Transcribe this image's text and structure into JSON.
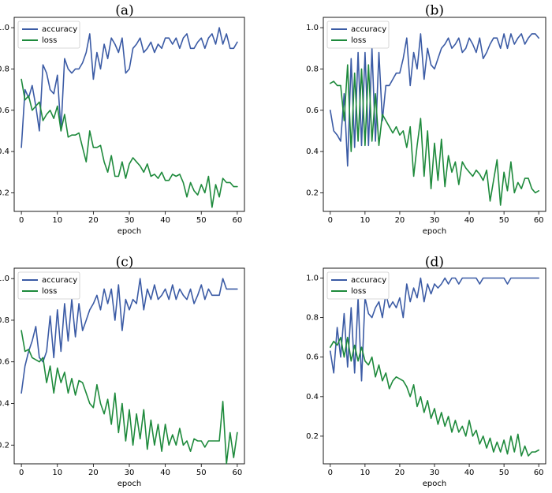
{
  "colors": {
    "accuracy": "#3b5ba5",
    "loss": "#1e8a3c"
  },
  "chart_data": [
    {
      "type": "line",
      "panel": "(a)",
      "title": "",
      "xlabel": "epoch",
      "ylabel": "",
      "xlim": [
        -2,
        62
      ],
      "ylim": [
        0.11,
        1.05
      ],
      "xticks": [
        "0",
        "10",
        "20",
        "30",
        "40",
        "50",
        "60"
      ],
      "yticks": [
        "0.2",
        "0.4",
        "0.6",
        "0.8",
        "1.0"
      ],
      "legend": "upper-left",
      "series": [
        {
          "name": "accuracy",
          "x_start": 0,
          "values": [
            0.42,
            0.7,
            0.66,
            0.72,
            0.62,
            0.5,
            0.82,
            0.78,
            0.7,
            0.68,
            0.77,
            0.5,
            0.85,
            0.8,
            0.78,
            0.8,
            0.8,
            0.83,
            0.88,
            0.97,
            0.75,
            0.88,
            0.8,
            0.92,
            0.85,
            0.95,
            0.92,
            0.88,
            0.95,
            0.78,
            0.8,
            0.9,
            0.92,
            0.95,
            0.88,
            0.9,
            0.93,
            0.88,
            0.92,
            0.9,
            0.95,
            0.95,
            0.92,
            0.95,
            0.9,
            0.95,
            0.97,
            0.9,
            0.9,
            0.93,
            0.95,
            0.9,
            0.95,
            0.97,
            0.92,
            1.0,
            0.92,
            0.97,
            0.9,
            0.9,
            0.93
          ]
        },
        {
          "name": "loss",
          "x_start": 0,
          "values": [
            0.75,
            0.65,
            0.67,
            0.6,
            0.62,
            0.64,
            0.55,
            0.58,
            0.6,
            0.56,
            0.62,
            0.5,
            0.58,
            0.47,
            0.48,
            0.48,
            0.49,
            0.42,
            0.35,
            0.5,
            0.42,
            0.42,
            0.43,
            0.35,
            0.3,
            0.38,
            0.28,
            0.28,
            0.35,
            0.27,
            0.34,
            0.37,
            0.35,
            0.33,
            0.3,
            0.34,
            0.28,
            0.29,
            0.27,
            0.3,
            0.26,
            0.26,
            0.29,
            0.28,
            0.29,
            0.25,
            0.18,
            0.25,
            0.21,
            0.19,
            0.24,
            0.2,
            0.28,
            0.13,
            0.24,
            0.18,
            0.27,
            0.25,
            0.25,
            0.23,
            0.23
          ]
        }
      ]
    },
    {
      "type": "line",
      "panel": "(b)",
      "title": "",
      "xlabel": "epoch",
      "ylabel": "",
      "xlim": [
        -2,
        62
      ],
      "ylim": [
        0.11,
        1.05
      ],
      "xticks": [
        "0",
        "10",
        "20",
        "30",
        "40",
        "50",
        "60"
      ],
      "yticks": [
        "0.2",
        "0.4",
        "0.6",
        "0.8",
        "1.0"
      ],
      "legend": "upper-left",
      "series": [
        {
          "name": "accuracy",
          "x_start": 0,
          "values": [
            0.6,
            0.5,
            0.48,
            0.45,
            0.68,
            0.33,
            0.85,
            0.42,
            0.88,
            0.43,
            0.88,
            0.43,
            0.9,
            0.45,
            0.88,
            0.55,
            0.72,
            0.72,
            0.75,
            0.78,
            0.78,
            0.85,
            0.95,
            0.72,
            0.88,
            0.8,
            0.97,
            0.75,
            0.9,
            0.82,
            0.8,
            0.85,
            0.9,
            0.92,
            0.95,
            0.9,
            0.92,
            0.95,
            0.88,
            0.9,
            0.95,
            0.92,
            0.88,
            0.95,
            0.85,
            0.88,
            0.92,
            0.95,
            0.95,
            0.9,
            0.97,
            0.9,
            0.97,
            0.92,
            0.95,
            0.97,
            0.92,
            0.95,
            0.97,
            0.97,
            0.95
          ]
        },
        {
          "name": "loss",
          "x_start": 0,
          "values": [
            0.73,
            0.74,
            0.72,
            0.72,
            0.55,
            0.82,
            0.4,
            0.78,
            0.45,
            0.8,
            0.43,
            0.82,
            0.45,
            0.68,
            0.43,
            0.58,
            0.55,
            0.52,
            0.49,
            0.52,
            0.48,
            0.5,
            0.42,
            0.52,
            0.28,
            0.43,
            0.56,
            0.28,
            0.5,
            0.22,
            0.44,
            0.26,
            0.46,
            0.23,
            0.38,
            0.3,
            0.35,
            0.24,
            0.35,
            0.32,
            0.3,
            0.28,
            0.31,
            0.29,
            0.26,
            0.31,
            0.16,
            0.26,
            0.36,
            0.14,
            0.3,
            0.21,
            0.35,
            0.2,
            0.25,
            0.22,
            0.27,
            0.27,
            0.22,
            0.2,
            0.21
          ]
        }
      ]
    },
    {
      "type": "line",
      "panel": "(c)",
      "title": "",
      "xlabel": "epoch",
      "ylabel": "",
      "xlim": [
        -2,
        62
      ],
      "ylim": [
        0.11,
        1.05
      ],
      "xticks": [
        "0",
        "10",
        "20",
        "30",
        "40",
        "50",
        "60"
      ],
      "yticks": [
        "0.2",
        "0.4",
        "0.6",
        "0.8",
        "1.0"
      ],
      "legend": "upper-left",
      "series": [
        {
          "name": "accuracy",
          "x_start": 0,
          "values": [
            0.45,
            0.58,
            0.65,
            0.7,
            0.77,
            0.62,
            0.6,
            0.65,
            0.82,
            0.62,
            0.85,
            0.65,
            0.88,
            0.7,
            0.9,
            0.72,
            0.88,
            0.75,
            0.8,
            0.85,
            0.88,
            0.92,
            0.85,
            0.95,
            0.88,
            0.95,
            0.8,
            0.97,
            0.75,
            0.9,
            0.85,
            0.9,
            0.88,
            1.0,
            0.85,
            0.95,
            0.9,
            0.97,
            0.9,
            0.92,
            0.95,
            0.9,
            0.97,
            0.9,
            0.95,
            0.92,
            0.9,
            0.95,
            0.88,
            0.92,
            0.97,
            0.9,
            0.95,
            0.92,
            0.92,
            0.92,
            1.0,
            0.95,
            0.95,
            0.95,
            0.95
          ]
        },
        {
          "name": "loss",
          "x_start": 0,
          "values": [
            0.75,
            0.65,
            0.66,
            0.62,
            0.61,
            0.6,
            0.62,
            0.5,
            0.58,
            0.45,
            0.57,
            0.5,
            0.55,
            0.45,
            0.52,
            0.44,
            0.51,
            0.5,
            0.45,
            0.4,
            0.38,
            0.49,
            0.4,
            0.35,
            0.42,
            0.3,
            0.45,
            0.26,
            0.4,
            0.22,
            0.37,
            0.2,
            0.35,
            0.23,
            0.37,
            0.18,
            0.32,
            0.2,
            0.3,
            0.17,
            0.3,
            0.2,
            0.25,
            0.2,
            0.28,
            0.2,
            0.22,
            0.17,
            0.23,
            0.22,
            0.22,
            0.19,
            0.22,
            0.22,
            0.22,
            0.22,
            0.41,
            0.11,
            0.26,
            0.14,
            0.26
          ]
        }
      ]
    },
    {
      "type": "line",
      "panel": "(d)",
      "title": "",
      "xlabel": "epoch",
      "ylabel": "",
      "xlim": [
        -2,
        62
      ],
      "ylim": [
        0.06,
        1.05
      ],
      "xticks": [
        "0",
        "10",
        "20",
        "30",
        "40",
        "50",
        "60"
      ],
      "yticks": [
        "0.2",
        "0.4",
        "0.6",
        "0.8",
        "1.0"
      ],
      "legend": "upper-left",
      "series": [
        {
          "name": "accuracy",
          "x_start": 0,
          "values": [
            0.63,
            0.52,
            0.75,
            0.6,
            0.82,
            0.55,
            0.85,
            0.52,
            0.9,
            0.48,
            0.9,
            0.82,
            0.8,
            0.85,
            0.88,
            0.8,
            0.92,
            0.85,
            0.88,
            0.85,
            0.9,
            0.8,
            0.97,
            0.88,
            0.95,
            0.9,
            1.0,
            0.88,
            0.97,
            0.92,
            0.97,
            0.95,
            0.97,
            1.0,
            0.97,
            1.0,
            1.0,
            0.97,
            1.0,
            1.0,
            1.0,
            1.0,
            1.0,
            0.97,
            1.0,
            1.0,
            1.0,
            1.0,
            1.0,
            1.0,
            1.0,
            0.97,
            1.0,
            1.0,
            1.0,
            1.0,
            1.0,
            1.0,
            1.0,
            1.0,
            1.0
          ]
        },
        {
          "name": "loss",
          "x_start": 0,
          "values": [
            0.65,
            0.68,
            0.66,
            0.7,
            0.6,
            0.7,
            0.58,
            0.66,
            0.58,
            0.65,
            0.58,
            0.56,
            0.6,
            0.5,
            0.56,
            0.48,
            0.52,
            0.44,
            0.48,
            0.5,
            0.49,
            0.48,
            0.45,
            0.4,
            0.46,
            0.35,
            0.4,
            0.32,
            0.38,
            0.29,
            0.34,
            0.26,
            0.32,
            0.25,
            0.3,
            0.22,
            0.28,
            0.22,
            0.25,
            0.2,
            0.28,
            0.2,
            0.23,
            0.16,
            0.2,
            0.14,
            0.19,
            0.12,
            0.17,
            0.12,
            0.18,
            0.11,
            0.2,
            0.12,
            0.21,
            0.1,
            0.15,
            0.1,
            0.12,
            0.12,
            0.13
          ]
        }
      ]
    }
  ]
}
